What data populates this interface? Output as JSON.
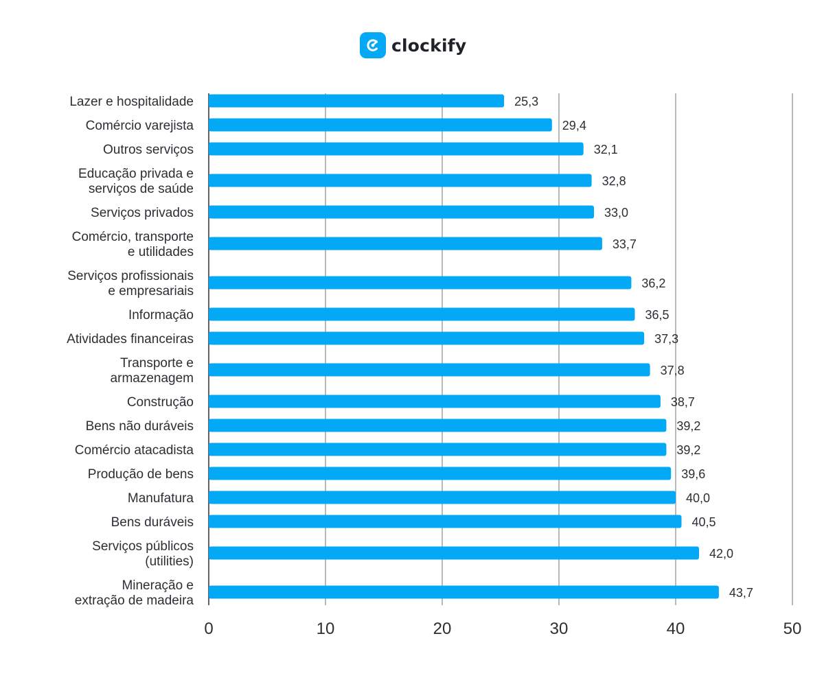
{
  "brand": {
    "name": "clockify",
    "icon": "clockify-logo-icon",
    "color": "#03a9f4"
  },
  "chart_data": {
    "type": "bar",
    "orientation": "horizontal",
    "title": "",
    "xlabel": "",
    "ylabel": "",
    "xlim": [
      0,
      50
    ],
    "xticks": [
      "0",
      "10",
      "20",
      "30",
      "40",
      "50"
    ],
    "grid": true,
    "bar_color": "#03a9f4",
    "categories": [
      [
        "Lazer e hospitalidade"
      ],
      [
        "Comércio varejista"
      ],
      [
        "Outros serviços"
      ],
      [
        "Educação privada e",
        "serviços de saúde"
      ],
      [
        "Serviços privados"
      ],
      [
        "Comércio, transporte",
        "e utilidades"
      ],
      [
        "Serviços profissionais",
        "e empresariais"
      ],
      [
        "Informação"
      ],
      [
        "Atividades financeiras"
      ],
      [
        "Transporte e",
        "armazenagem"
      ],
      [
        "Construção"
      ],
      [
        "Bens não duráveis"
      ],
      [
        "Comércio atacadista"
      ],
      [
        "Produção de bens"
      ],
      [
        "Manufatura"
      ],
      [
        "Bens duráveis"
      ],
      [
        "Serviços públicos",
        "(utilities)"
      ],
      [
        "Mineração e",
        "extração de madeira"
      ]
    ],
    "values": [
      25.3,
      29.4,
      32.1,
      32.8,
      33.0,
      33.7,
      36.2,
      36.5,
      37.3,
      37.8,
      38.7,
      39.2,
      39.2,
      39.6,
      40.0,
      40.5,
      42.0,
      43.7
    ],
    "value_labels": [
      "25,3",
      "29,4",
      "32,1",
      "32,8",
      "33,0",
      "33,7",
      "36,2",
      "36,5",
      "37,3",
      "37,8",
      "38,7",
      "39,2",
      "39,2",
      "39,6",
      "40,0",
      "40,5",
      "42,0",
      "43,7"
    ]
  }
}
